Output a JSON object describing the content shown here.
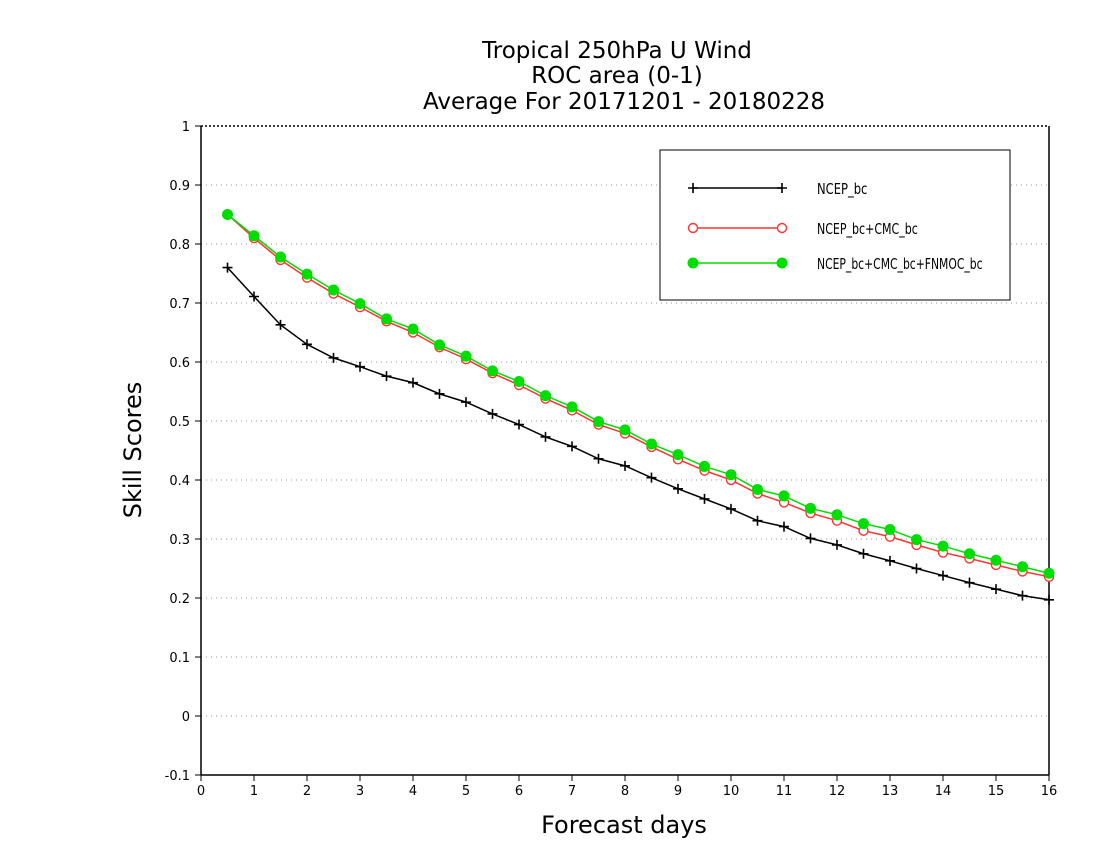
{
  "chart_data": {
    "type": "line",
    "title_lines": [
      "Tropical 250hPa U Wind",
      "ROC area (0-1)",
      "Average For 20171201 - 20180228"
    ],
    "xlabel": "Forecast days",
    "ylabel": "Skill Scores",
    "xlim": [
      0,
      16
    ],
    "ylim": [
      -0.1,
      1
    ],
    "xticks": [
      "0",
      "1",
      "2",
      "3",
      "4",
      "5",
      "6",
      "7",
      "8",
      "9",
      "10",
      "11",
      "12",
      "13",
      "14",
      "15",
      "16"
    ],
    "yticks": [
      "-0.1",
      "0",
      "0.1",
      "0.2",
      "0.3",
      "0.4",
      "0.5",
      "0.6",
      "0.7",
      "0.8",
      "0.9",
      "1"
    ],
    "grid": "horizontal dotted",
    "legend_position": "top-right",
    "x": [
      0.5,
      1,
      1.5,
      2,
      2.5,
      3,
      3.5,
      4,
      4.5,
      5,
      5.5,
      6,
      6.5,
      7,
      7.5,
      8,
      8.5,
      9,
      9.5,
      10,
      10.5,
      11,
      11.5,
      12,
      12.5,
      13,
      13.5,
      14,
      14.5,
      15,
      15.5,
      16
    ],
    "series": [
      {
        "name": "NCEP_bc",
        "color": "#000000",
        "marker": "plus",
        "values": [
          0.76,
          0.711,
          0.663,
          0.63,
          0.607,
          0.592,
          0.576,
          0.565,
          0.546,
          0.532,
          0.512,
          0.494,
          0.473,
          0.457,
          0.436,
          0.424,
          0.404,
          0.385,
          0.368,
          0.351,
          0.331,
          0.321,
          0.301,
          0.29,
          0.275,
          0.263,
          0.25,
          0.238,
          0.226,
          0.215,
          0.204,
          0.197
        ]
      },
      {
        "name": "NCEP_bc+CMC_bc",
        "color": "#ff3333",
        "marker": "open-circle",
        "values": [
          0.85,
          0.81,
          0.773,
          0.743,
          0.716,
          0.693,
          0.669,
          0.65,
          0.625,
          0.605,
          0.581,
          0.561,
          0.538,
          0.518,
          0.494,
          0.479,
          0.456,
          0.435,
          0.416,
          0.4,
          0.377,
          0.362,
          0.344,
          0.331,
          0.314,
          0.304,
          0.29,
          0.277,
          0.267,
          0.256,
          0.245,
          0.236
        ]
      },
      {
        "name": "NCEP_bc+CMC_bc+FNMOC_bc",
        "color": "#00dd00",
        "marker": "filled-circle",
        "values": [
          0.85,
          0.814,
          0.778,
          0.749,
          0.722,
          0.699,
          0.673,
          0.656,
          0.629,
          0.61,
          0.585,
          0.567,
          0.543,
          0.524,
          0.499,
          0.485,
          0.461,
          0.443,
          0.423,
          0.409,
          0.384,
          0.373,
          0.352,
          0.341,
          0.326,
          0.316,
          0.299,
          0.288,
          0.275,
          0.264,
          0.253,
          0.242
        ]
      }
    ]
  }
}
